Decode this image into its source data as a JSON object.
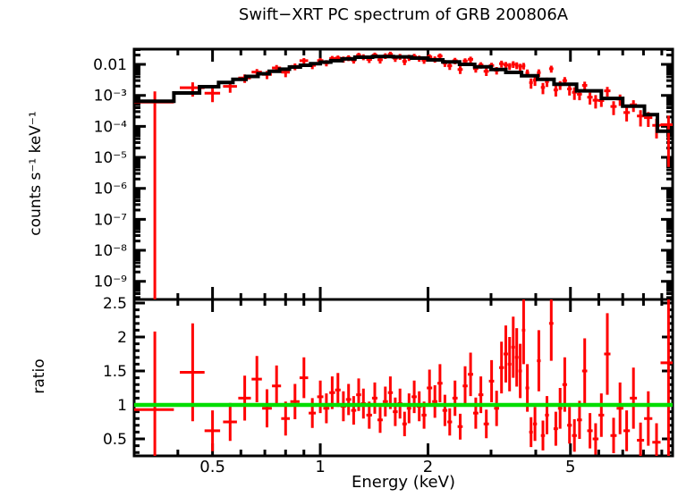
{
  "title": "Swift−XRT PC spectrum of GRB 200806A",
  "axes": {
    "x_label": "Energy (keV)",
    "y_label_top": "counts s⁻¹ keV⁻¹",
    "y_label_bottom": "ratio",
    "x_scale": "log",
    "x_range_kev": [
      0.302,
      9.65
    ],
    "x_tick_labels": [
      {
        "value": 0.5,
        "label": "0.5"
      },
      {
        "value": 1,
        "label": "1"
      },
      {
        "value": 2,
        "label": "2"
      },
      {
        "value": 5,
        "label": "5"
      }
    ],
    "x_minor_ticks": [
      0.4,
      0.5,
      0.6,
      0.7,
      0.8,
      0.9,
      1,
      2,
      3,
      4,
      5,
      6,
      7,
      8,
      9
    ],
    "top_y_scale": "log",
    "top_y_range": [
      2.6e-10,
      0.031
    ],
    "top_y_tick_labels": [
      {
        "value": 0.01,
        "label": "0.01"
      },
      {
        "value": 0.001,
        "label": "10⁻³"
      },
      {
        "value": 0.0001,
        "label": "10⁻⁴"
      },
      {
        "value": 1e-05,
        "label": "10⁻⁵"
      },
      {
        "value": 1e-06,
        "label": "10⁻⁶"
      },
      {
        "value": 1e-07,
        "label": "10⁻⁷"
      },
      {
        "value": 1e-08,
        "label": "10⁻⁸"
      },
      {
        "value": 1e-09,
        "label": "10⁻⁹"
      }
    ],
    "bottom_y_scale": "linear",
    "bottom_y_range": [
      0.25,
      2.553
    ],
    "bottom_y_tick_labels": [
      {
        "value": 2.5,
        "label": "2.5"
      },
      {
        "value": 2,
        "label": "2"
      },
      {
        "value": 1.5,
        "label": "1.5"
      },
      {
        "value": 1,
        "label": "1"
      },
      {
        "value": 0.5,
        "label": "0.5"
      }
    ],
    "bottom_y_minor_step": 0.1
  },
  "colors": {
    "background": "#ffffff",
    "axis": "#000000",
    "data": "#ff0000",
    "model": "#000000",
    "ratio_unity_line": "#00dd00"
  },
  "chart_data": {
    "type": "scatter",
    "description": "Two stacked panels sharing a log energy axis. Top: counts spectrum (red crosses with x/y error bars) with folded model (black histogram). Bottom: data/model ratio (red crosses) with green reference line at ratio = 1.",
    "panels": [
      {
        "name": "spectrum",
        "x_scale": "log",
        "y_scale": "log",
        "model_histogram": {
          "energy_edges_kev": [
            0.302,
            0.39,
            0.46,
            0.52,
            0.57,
            0.62,
            0.67,
            0.72,
            0.77,
            0.82,
            0.88,
            0.94,
            1.0,
            1.07,
            1.15,
            1.25,
            1.4,
            1.6,
            1.8,
            2.0,
            2.2,
            2.45,
            2.7,
            3.0,
            3.3,
            3.65,
            4.05,
            4.5,
            5.2,
            6.1,
            7.0,
            8.05,
            8.75,
            9.65
          ],
          "values_counts_s_kev": [
            0.00065,
            0.0012,
            0.0019,
            0.0026,
            0.0033,
            0.0041,
            0.005,
            0.006,
            0.007,
            0.0082,
            0.0094,
            0.0106,
            0.0118,
            0.0132,
            0.015,
            0.017,
            0.018,
            0.0175,
            0.016,
            0.014,
            0.012,
            0.01,
            0.0083,
            0.0068,
            0.0055,
            0.0043,
            0.0033,
            0.0023,
            0.0014,
            0.0008,
            0.00045,
            0.00024,
            7e-05
          ]
        },
        "data_note": "data counts = model(E) x ratio, count error = model(E) x ratio_err; error bars clipped at panel edges"
      },
      {
        "name": "ratio",
        "x_scale": "log",
        "y_scale": "linear",
        "reference_line_y": 1,
        "points_format": [
          "energy_kev",
          "energy_halfwidth_kev",
          "ratio",
          "ratio_err"
        ],
        "points": [
          [
            0.345,
            0.045,
            0.93,
            1.15
          ],
          [
            0.44,
            0.035,
            1.48,
            0.72
          ],
          [
            0.5,
            0.025,
            0.62,
            0.3
          ],
          [
            0.56,
            0.025,
            0.75,
            0.28
          ],
          [
            0.615,
            0.025,
            1.1,
            0.33
          ],
          [
            0.665,
            0.022,
            1.38,
            0.34
          ],
          [
            0.71,
            0.022,
            0.95,
            0.28
          ],
          [
            0.755,
            0.022,
            1.28,
            0.3
          ],
          [
            0.8,
            0.022,
            0.8,
            0.25
          ],
          [
            0.85,
            0.025,
            1.05,
            0.26
          ],
          [
            0.9,
            0.025,
            1.4,
            0.3
          ],
          [
            0.95,
            0.022,
            0.88,
            0.22
          ],
          [
            1.0,
            0.02,
            1.12,
            0.24
          ],
          [
            1.04,
            0.02,
            0.95,
            0.22
          ],
          [
            1.08,
            0.02,
            1.18,
            0.24
          ],
          [
            1.12,
            0.02,
            1.22,
            0.25
          ],
          [
            1.16,
            0.02,
            0.98,
            0.22
          ],
          [
            1.2,
            0.02,
            1.08,
            0.23
          ],
          [
            1.24,
            0.02,
            0.92,
            0.21
          ],
          [
            1.28,
            0.02,
            1.15,
            0.24
          ],
          [
            1.32,
            0.02,
            1.02,
            0.22
          ],
          [
            1.37,
            0.025,
            0.85,
            0.2
          ],
          [
            1.42,
            0.025,
            1.1,
            0.23
          ],
          [
            1.47,
            0.025,
            0.78,
            0.19
          ],
          [
            1.52,
            0.025,
            1.05,
            0.22
          ],
          [
            1.57,
            0.025,
            1.18,
            0.24
          ],
          [
            1.62,
            0.025,
            0.9,
            0.21
          ],
          [
            1.67,
            0.025,
            1.02,
            0.22
          ],
          [
            1.72,
            0.025,
            0.72,
            0.18
          ],
          [
            1.77,
            0.025,
            0.95,
            0.22
          ],
          [
            1.83,
            0.03,
            1.12,
            0.24
          ],
          [
            1.89,
            0.03,
            0.98,
            0.22
          ],
          [
            1.95,
            0.03,
            0.85,
            0.2
          ],
          [
            2.02,
            0.035,
            1.25,
            0.27
          ],
          [
            2.09,
            0.035,
            1.05,
            0.24
          ],
          [
            2.16,
            0.035,
            1.32,
            0.28
          ],
          [
            2.23,
            0.035,
            0.92,
            0.23
          ],
          [
            2.3,
            0.035,
            0.75,
            0.2
          ],
          [
            2.38,
            0.04,
            1.1,
            0.26
          ],
          [
            2.46,
            0.04,
            0.68,
            0.19
          ],
          [
            2.54,
            0.04,
            1.28,
            0.29
          ],
          [
            2.63,
            0.045,
            1.45,
            0.32
          ],
          [
            2.72,
            0.045,
            0.88,
            0.23
          ],
          [
            2.81,
            0.045,
            1.15,
            0.27
          ],
          [
            2.91,
            0.05,
            0.72,
            0.21
          ],
          [
            3.01,
            0.05,
            1.35,
            0.31
          ],
          [
            3.11,
            0.05,
            0.95,
            0.26
          ],
          [
            3.21,
            0.05,
            1.55,
            0.38
          ],
          [
            3.3,
            0.045,
            1.75,
            0.42
          ],
          [
            3.38,
            0.04,
            1.6,
            0.4
          ],
          [
            3.46,
            0.04,
            1.85,
            0.45
          ],
          [
            3.54,
            0.04,
            1.7,
            0.43
          ],
          [
            3.62,
            0.04,
            1.5,
            0.4
          ],
          [
            3.7,
            0.04,
            2.1,
            0.5
          ],
          [
            3.79,
            0.045,
            1.25,
            0.35
          ],
          [
            3.88,
            0.045,
            0.6,
            0.22
          ],
          [
            3.98,
            0.05,
            0.72,
            0.25
          ],
          [
            4.08,
            0.05,
            1.65,
            0.45
          ],
          [
            4.19,
            0.055,
            0.55,
            0.22
          ],
          [
            4.3,
            0.055,
            0.85,
            0.28
          ],
          [
            4.42,
            0.06,
            2.2,
            0.55
          ],
          [
            4.55,
            0.065,
            0.65,
            0.25
          ],
          [
            4.68,
            0.065,
            0.95,
            0.3
          ],
          [
            4.82,
            0.07,
            1.3,
            0.4
          ],
          [
            4.97,
            0.075,
            0.7,
            0.27
          ],
          [
            5.13,
            0.08,
            0.55,
            0.24
          ],
          [
            5.3,
            0.085,
            0.78,
            0.28
          ],
          [
            5.48,
            0.09,
            1.5,
            0.48
          ],
          [
            5.67,
            0.1,
            0.62,
            0.26
          ],
          [
            5.88,
            0.11,
            0.5,
            0.23
          ],
          [
            6.1,
            0.11,
            0.85,
            0.32
          ],
          [
            6.34,
            0.13,
            1.75,
            0.6
          ],
          [
            6.6,
            0.13,
            0.55,
            0.26
          ],
          [
            6.88,
            0.15,
            0.95,
            0.38
          ],
          [
            7.18,
            0.15,
            0.62,
            0.3
          ],
          [
            7.5,
            0.17,
            1.1,
            0.45
          ],
          [
            7.85,
            0.18,
            0.48,
            0.26
          ],
          [
            8.25,
            0.22,
            0.8,
            0.4
          ],
          [
            8.7,
            0.23,
            0.45,
            0.28
          ],
          [
            9.4,
            0.47,
            1.62,
            1.55
          ]
        ]
      }
    ]
  }
}
